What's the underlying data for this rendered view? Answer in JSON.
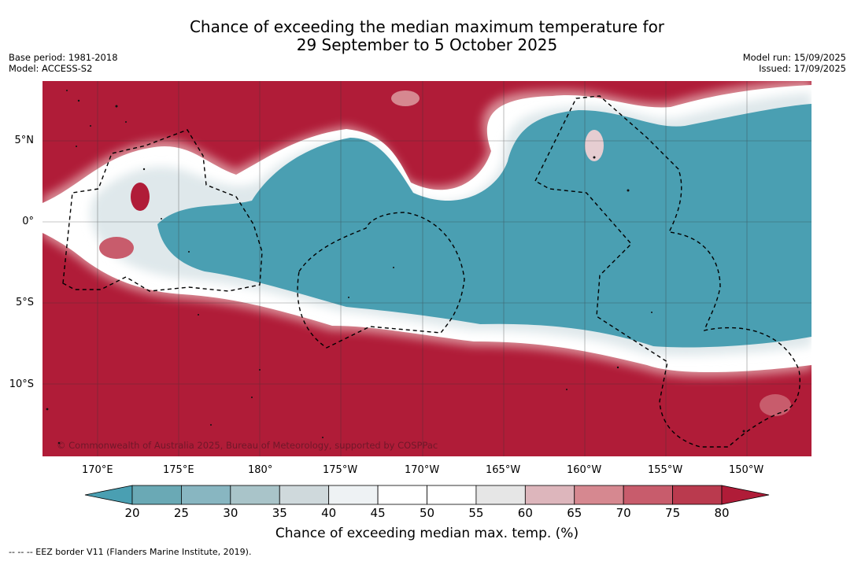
{
  "title": {
    "line1": "Chance of exceeding the median maximum temperature for",
    "line2": "29 September to 5 October 2025"
  },
  "meta": {
    "base_period": "Base period: 1981-2018",
    "model": "Model: ACCESS-S2",
    "model_run": "Model run: 15/09/2025",
    "issued": "Issued: 17/09/2025"
  },
  "lat_labels": [
    "5°N",
    "0°",
    "5°S",
    "10°S"
  ],
  "lon_labels": [
    "170°E",
    "175°E",
    "180°",
    "175°W",
    "170°W",
    "165°W",
    "160°W",
    "155°W",
    "150°W"
  ],
  "copyright": "© Commonwealth of Australia 2025, Bureau of Meteorology, supported by COSPPac",
  "colorbar": {
    "title": "Chance of exceeding median max. temp. (%)",
    "ticks": [
      "20",
      "25",
      "30",
      "35",
      "40",
      "45",
      "50",
      "55",
      "60",
      "65",
      "70",
      "75",
      "80"
    ],
    "colors": [
      "#4a9fb2",
      "#6aa9b5",
      "#88b6c1",
      "#a9c4c9",
      "#cfd9dc",
      "#eef2f4",
      "#ffffff",
      "#ffffff",
      "#e6e6e6",
      "#ddb6bc",
      "#d68890",
      "#c85c6c",
      "#ba3a4e",
      "#b01c38"
    ]
  },
  "footer": "--  --  -- EEZ border V11 (Flanders Marine Institute, 2019)."
}
